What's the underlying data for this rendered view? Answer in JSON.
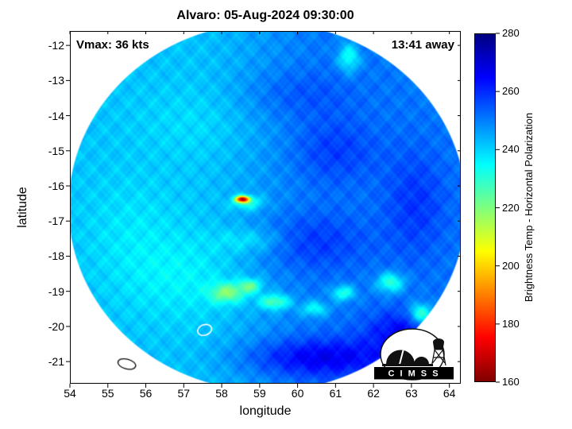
{
  "figure": {
    "title": "Alvaro: 05-Aug-2024 09:30:00",
    "vmax_label": "Vmax: 36 kts",
    "eta_label": "13:41 away",
    "background_color": "#ffffff"
  },
  "logo": {
    "text": "C I M S S"
  },
  "chart_data": {
    "type": "heatmap",
    "title": "Alvaro: 05-Aug-2024 09:30:00",
    "xlabel": "longitude",
    "ylabel": "latitude",
    "xlim": [
      54,
      64.3
    ],
    "ylim": [
      -21.63,
      -11.59
    ],
    "xticks": [
      54,
      55,
      56,
      57,
      58,
      59,
      60,
      61,
      62,
      63,
      64
    ],
    "yticks": [
      -12,
      -13,
      -14,
      -15,
      -16,
      -17,
      -18,
      -19,
      -20,
      -21
    ],
    "grid": false,
    "annotations": [
      {
        "text": "Vmax: 36 kts",
        "position": "top-left",
        "bold": true
      },
      {
        "text": "13:41 away",
        "position": "top-right",
        "bold": true
      }
    ],
    "colorbar": {
      "label": "Brightness Temp - Horizontal Polarization",
      "min": 160,
      "max": 280,
      "ticks": [
        160,
        180,
        200,
        220,
        240,
        260,
        280
      ],
      "colormap": "jet_reversed",
      "position": "right"
    },
    "swath": {
      "center_lon": 59.2,
      "center_lat": -16.6,
      "radius_deg": 5.25
    },
    "field": {
      "base_west_K": 242,
      "base_east_K": 251,
      "transition_lon": [
        57.0,
        61.0
      ],
      "noise_amp_K": 2.2,
      "blob_format": "[lon, lat, sigma_lon, sigma_lat, delta_K]",
      "blobs": [
        [
          58.55,
          -16.38,
          0.18,
          0.09,
          -72
        ],
        [
          58.68,
          -16.48,
          0.4,
          0.2,
          -15
        ],
        [
          58.8,
          -17.55,
          0.9,
          0.35,
          -8
        ],
        [
          57.0,
          -18.6,
          1.6,
          1.2,
          -6
        ],
        [
          55.6,
          -17.2,
          1.2,
          1.5,
          -4
        ],
        [
          57.3,
          -14.2,
          1.6,
          1.0,
          -3
        ],
        [
          58.15,
          -19.05,
          0.45,
          0.28,
          -22
        ],
        [
          58.75,
          -18.85,
          0.3,
          0.2,
          -20
        ],
        [
          59.4,
          -19.3,
          0.4,
          0.22,
          -22
        ],
        [
          60.45,
          -19.5,
          0.35,
          0.22,
          -16
        ],
        [
          61.2,
          -19.05,
          0.3,
          0.22,
          -20
        ],
        [
          62.45,
          -18.75,
          0.35,
          0.28,
          -22
        ],
        [
          63.25,
          -19.65,
          0.3,
          0.3,
          -26
        ],
        [
          61.35,
          -12.35,
          0.28,
          0.4,
          -18
        ],
        [
          60.6,
          -20.9,
          2.0,
          0.55,
          16
        ],
        [
          62.8,
          -20.15,
          1.0,
          0.6,
          14
        ],
        [
          60.3,
          -17.6,
          1.5,
          0.8,
          8
        ],
        [
          61.0,
          -15.0,
          1.1,
          0.9,
          7
        ],
        [
          59.9,
          -13.4,
          1.5,
          0.7,
          5
        ],
        [
          63.1,
          -16.5,
          0.8,
          1.5,
          8
        ]
      ]
    },
    "coastlines": [
      {
        "name": "island-contour-1",
        "lon": 57.55,
        "lat": -20.1,
        "rx": 0.19,
        "ry": 0.15,
        "rot": -20,
        "stroke": "#ffffff",
        "width": 1.6
      },
      {
        "name": "island-contour-2",
        "lon": 55.5,
        "lat": -21.07,
        "rx": 0.24,
        "ry": 0.14,
        "rot": 15,
        "stroke": "#000000",
        "width": 1.3
      }
    ]
  }
}
